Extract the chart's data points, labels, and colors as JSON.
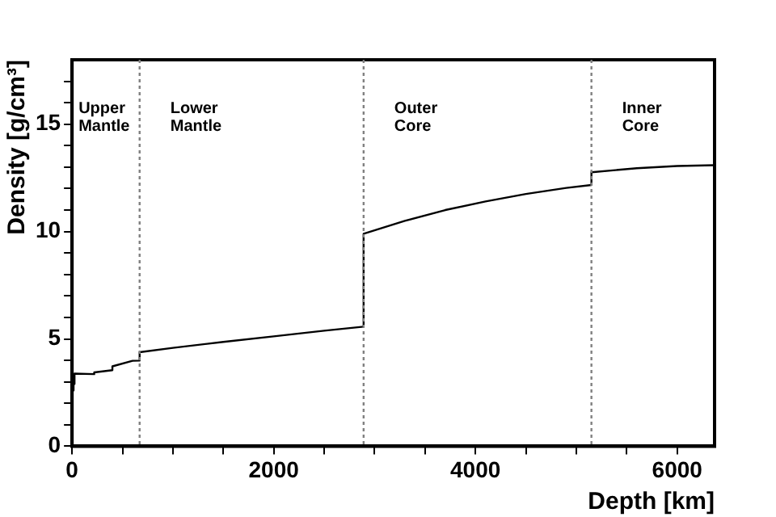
{
  "chart_data": {
    "type": "line",
    "xlabel": "Depth [km]",
    "ylabel": "Density [g/cm³]",
    "x": [
      0,
      3,
      3,
      15,
      15,
      24.4,
      24.4,
      220,
      220,
      400,
      400,
      600,
      670,
      670,
      1000,
      1500,
      2000,
      2500,
      2891,
      2891,
      3300,
      3700,
      4100,
      4500,
      4900,
      5150,
      5150,
      5600,
      6000,
      6371
    ],
    "series": [
      {
        "color": "#000000",
        "values": [
          1.02,
          1.02,
          2.6,
          2.6,
          2.9,
          2.9,
          3.38,
          3.36,
          3.44,
          3.54,
          3.72,
          3.98,
          3.99,
          4.38,
          4.58,
          4.86,
          5.12,
          5.38,
          5.57,
          9.9,
          10.5,
          11.0,
          11.4,
          11.75,
          12.03,
          12.17,
          12.76,
          12.95,
          13.05,
          13.09
        ]
      }
    ],
    "xlim": [
      0,
      6371
    ],
    "xticks": [
      0,
      {
        "value": 500,
        "label": null
      },
      {
        "value": 1000,
        "label": null
      },
      {
        "value": 1500,
        "label": null
      },
      2000,
      {
        "value": 2500,
        "label": null
      },
      {
        "value": 3000,
        "label": null
      },
      {
        "value": 3500,
        "label": null
      },
      4000,
      {
        "value": 4500,
        "label": null
      },
      {
        "value": 5000,
        "label": null
      },
      {
        "value": 5500,
        "label": null
      },
      6000
    ],
    "ylim": [
      0,
      18
    ],
    "yticks": [
      0,
      {
        "value": 1,
        "label": null
      },
      {
        "value": 2,
        "label": null
      },
      {
        "value": 3,
        "label": null
      },
      {
        "value": 4,
        "label": null
      },
      5,
      {
        "value": 6,
        "label": null
      },
      {
        "value": 7,
        "label": null
      },
      {
        "value": 8,
        "label": null
      },
      {
        "value": 9,
        "label": null
      },
      10,
      {
        "value": 11,
        "label": null
      },
      {
        "value": 12,
        "label": null
      },
      {
        "value": 13,
        "label": null
      },
      {
        "value": 14,
        "label": null
      },
      15,
      {
        "value": 16,
        "label": null
      },
      {
        "value": 17,
        "label": null
      }
    ],
    "ref_lines": [
      {
        "axis": "x",
        "value": 670,
        "color": "#808080",
        "line_style": "dotted"
      },
      {
        "axis": "x",
        "value": 2891,
        "color": "#808080",
        "line_style": "dotted"
      },
      {
        "axis": "x",
        "value": 5150,
        "color": "#808080",
        "line_style": "dotted"
      }
    ],
    "annotations": [
      "Upper\nMantle",
      "Lower\nMantle",
      "Outer\nCore",
      "Inner\nCore"
    ],
    "grid": false,
    "legend": false,
    "marker": "none",
    "line_style": "solid"
  }
}
